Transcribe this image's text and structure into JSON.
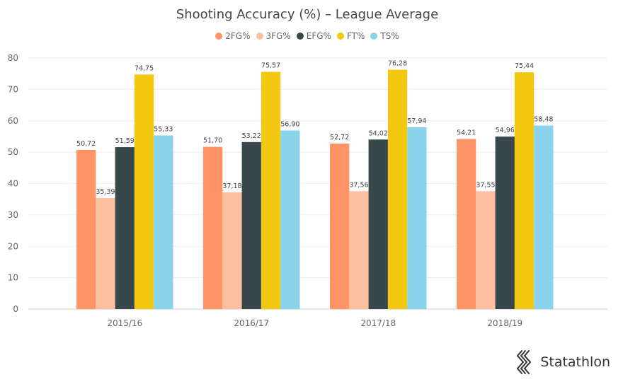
{
  "brand": {
    "name": "Statathlon"
  },
  "chart_data": {
    "type": "bar",
    "title": "Shooting Accuracy (%) – League Average",
    "xlabel": "",
    "ylabel": "",
    "ylim": [
      0,
      80
    ],
    "yticks": [
      0,
      10,
      20,
      30,
      40,
      50,
      60,
      70,
      80
    ],
    "grid": true,
    "legend_position": "top-center",
    "categories": [
      "2015/16",
      "2016/17",
      "2017/18",
      "2018/19"
    ],
    "series": [
      {
        "name": "2FG%",
        "color": "#FF9466",
        "values": [
          50.72,
          51.7,
          52.72,
          54.21
        ],
        "labels": [
          "50,72",
          "51,70",
          "52,72",
          "54,21"
        ]
      },
      {
        "name": "3FG%",
        "color": "#FDBFA0",
        "values": [
          35.39,
          37.18,
          37.56,
          37.55
        ],
        "labels": [
          "35,39",
          "37,18",
          "37,56",
          "37,55"
        ]
      },
      {
        "name": "EFG%",
        "color": "#37474B",
        "values": [
          51.59,
          53.22,
          54.02,
          54.96
        ],
        "labels": [
          "51,59",
          "53,22",
          "54,02",
          "54,96"
        ]
      },
      {
        "name": "FT%",
        "color": "#F2C811",
        "values": [
          74.75,
          75.57,
          76.28,
          75.44
        ],
        "labels": [
          "74,75",
          "75,57",
          "76,28",
          "75,44"
        ]
      },
      {
        "name": "TS%",
        "color": "#8AD4EB",
        "values": [
          55.33,
          56.9,
          57.94,
          58.48
        ],
        "labels": [
          "55,33",
          "56,90",
          "57,94",
          "58,48"
        ]
      }
    ]
  }
}
